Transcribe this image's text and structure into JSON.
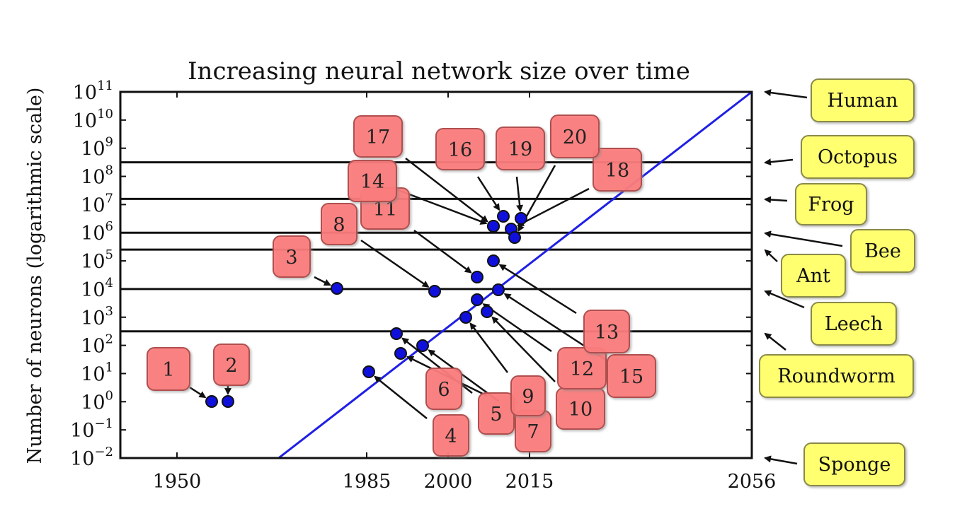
{
  "chart_data": {
    "type": "scatter",
    "title": "Increasing neural network size over time",
    "xlabel": "",
    "ylabel": "Number of neurons (logarithmic scale)",
    "x_scale": "linear",
    "y_scale": "log",
    "xlim": [
      1935,
      2056
    ],
    "ylim_exponent": [
      -2,
      11
    ],
    "x_ticks": [
      "1950",
      "1985",
      "2000",
      "2015",
      "2056"
    ],
    "y_ticks": [
      {
        "base": "10",
        "exp": "11"
      },
      {
        "base": "10",
        "exp": "10"
      },
      {
        "base": "10",
        "exp": "9"
      },
      {
        "base": "10",
        "exp": "8"
      },
      {
        "base": "10",
        "exp": "7"
      },
      {
        "base": "10",
        "exp": "6"
      },
      {
        "base": "10",
        "exp": "5"
      },
      {
        "base": "10",
        "exp": "4"
      },
      {
        "base": "10",
        "exp": "3"
      },
      {
        "base": "10",
        "exp": "2"
      },
      {
        "base": "10",
        "exp": "1"
      },
      {
        "base": "10",
        "exp": "0"
      },
      {
        "base": "10",
        "exp": "−1"
      },
      {
        "base": "10",
        "exp": "−2"
      }
    ],
    "grid": false,
    "trend_line": {
      "start": [
        1950,
        "1e-2"
      ],
      "end": [
        2056,
        "1e11"
      ],
      "color": "#1f1fe6"
    },
    "points": [
      {
        "label": "1",
        "x": 1957,
        "y": 1
      },
      {
        "label": "2",
        "x": 1960,
        "y": 1
      },
      {
        "label": "3",
        "x": 1982,
        "y": 10000
      },
      {
        "label": "4",
        "x": 1986,
        "y": 12
      },
      {
        "label": "5",
        "x": 1991,
        "y": 90
      },
      {
        "label": "6",
        "x": 1990,
        "y": 50
      },
      {
        "label": "7",
        "x": 1995,
        "y": 90
      },
      {
        "label": "8",
        "x": 1998,
        "y": 8000
      },
      {
        "label": "9",
        "x": 2004,
        "y": 1000
      },
      {
        "label": "10",
        "x": 2007,
        "y": 1500
      },
      {
        "label": "11",
        "x": 2005,
        "y": 25000
      },
      {
        "label": "12",
        "x": 2005,
        "y": 4000
      },
      {
        "label": "13",
        "x": 2009,
        "y": 100000
      },
      {
        "label": "14",
        "x": 2009,
        "y": 1600000
      },
      {
        "label": "15",
        "x": 2010,
        "y": 9000
      },
      {
        "label": "16",
        "x": 2011,
        "y": 3200000
      },
      {
        "label": "17",
        "x": 2009,
        "y": 1600000
      },
      {
        "label": "18",
        "x": 2014,
        "y": 1000000
      },
      {
        "label": "19",
        "x": 2015,
        "y": 3000000
      },
      {
        "label": "20",
        "x": 2014,
        "y": 700000
      }
    ],
    "point_color": "#1010dd",
    "reference_lines": [
      {
        "name": "Human",
        "y_exp": 11
      },
      {
        "name": "Octopus",
        "y_exp": 8.5
      },
      {
        "name": "Frog",
        "y_exp": 7.2
      },
      {
        "name": "Bee",
        "y_exp": 6.0
      },
      {
        "name": "Ant",
        "y_exp": 5.4
      },
      {
        "name": "Leech",
        "y_exp": 4.0
      },
      {
        "name": "Roundworm",
        "y_exp": 2.5
      },
      {
        "name": "Sponge",
        "y_exp": -2
      }
    ],
    "label_box_colors": {
      "network": "#ff7b7b",
      "animal": "#ffff70"
    }
  }
}
